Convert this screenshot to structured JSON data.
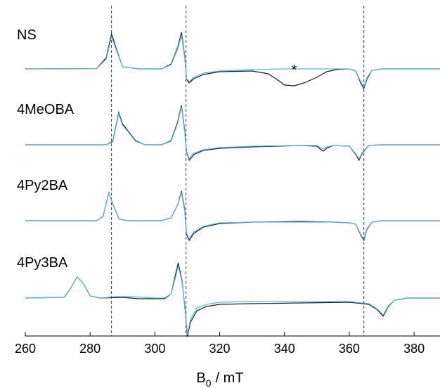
{
  "chart_data": {
    "type": "line",
    "title": "",
    "xlabel": "B",
    "xlabel_sub": "0",
    "xlabel_unit": "/ mT",
    "xlim": [
      260,
      388
    ],
    "xticks": [
      260,
      280,
      300,
      320,
      340,
      360,
      380
    ],
    "dashed_lines_x": [
      286.6,
      309.6,
      364.5
    ],
    "marker": {
      "symbol": "*",
      "x": 343,
      "spectrum": "NS"
    },
    "colors": {
      "experimental": "#1a1a1a",
      "simulated": "#5bb3d6"
    },
    "spectra": [
      {
        "name": "NS",
        "exp": [
          [
            260,
            0
          ],
          [
            282,
            0.5
          ],
          [
            285,
            16
          ],
          [
            286.6,
            50
          ],
          [
            288,
            30
          ],
          [
            290,
            3
          ],
          [
            295,
            0
          ],
          [
            302,
            0
          ],
          [
            305,
            7
          ],
          [
            307,
            30
          ],
          [
            308.2,
            52
          ],
          [
            309.2,
            18
          ],
          [
            309.8,
            -15
          ],
          [
            310.6,
            -20
          ],
          [
            312,
            -14
          ],
          [
            315,
            -8
          ],
          [
            320,
            -4
          ],
          [
            330,
            -3
          ],
          [
            335,
            -7
          ],
          [
            338,
            -16
          ],
          [
            340,
            -23
          ],
          [
            343,
            -24
          ],
          [
            346,
            -20
          ],
          [
            350,
            -12
          ],
          [
            353,
            -4
          ],
          [
            356,
            -1
          ],
          [
            360,
            0
          ],
          [
            362,
            -3
          ],
          [
            363.5,
            -20
          ],
          [
            364.5,
            -28
          ],
          [
            365.5,
            -14
          ],
          [
            367,
            -2
          ],
          [
            370,
            0
          ],
          [
            388,
            0
          ]
        ],
        "sim": [
          [
            260,
            0
          ],
          [
            282,
            0.5
          ],
          [
            285,
            14
          ],
          [
            286.6,
            46
          ],
          [
            288,
            28
          ],
          [
            290,
            3
          ],
          [
            295,
            0
          ],
          [
            302,
            0
          ],
          [
            305,
            6
          ],
          [
            307,
            28
          ],
          [
            308.2,
            48
          ],
          [
            309.2,
            16
          ],
          [
            309.8,
            -14
          ],
          [
            310.6,
            -18
          ],
          [
            312,
            -12
          ],
          [
            315,
            -6
          ],
          [
            320,
            -3
          ],
          [
            330,
            -1
          ],
          [
            340,
            0
          ],
          [
            350,
            0
          ],
          [
            356,
            0
          ],
          [
            360,
            0
          ],
          [
            362,
            -3
          ],
          [
            363.5,
            -18
          ],
          [
            364.5,
            -26
          ],
          [
            365.5,
            -12
          ],
          [
            367,
            -2
          ],
          [
            370,
            0
          ],
          [
            388,
            0
          ]
        ]
      },
      {
        "name": "4MeOBA",
        "exp": [
          [
            260,
            0
          ],
          [
            285,
            0
          ],
          [
            287,
            5
          ],
          [
            288.8,
            46
          ],
          [
            290,
            30
          ],
          [
            292,
            18
          ],
          [
            294,
            6
          ],
          [
            297,
            0
          ],
          [
            302,
            0
          ],
          [
            305,
            6
          ],
          [
            307,
            32
          ],
          [
            308.2,
            56
          ],
          [
            309.2,
            20
          ],
          [
            309.8,
            -10
          ],
          [
            310.6,
            -22
          ],
          [
            312,
            -14
          ],
          [
            315,
            -8
          ],
          [
            320,
            -5
          ],
          [
            330,
            -3
          ],
          [
            345,
            -1
          ],
          [
            350,
            -2
          ],
          [
            351,
            -6
          ],
          [
            352,
            -9
          ],
          [
            353,
            -5
          ],
          [
            355,
            -1
          ],
          [
            360,
            -2
          ],
          [
            362,
            -14
          ],
          [
            363,
            -22
          ],
          [
            364,
            -12
          ],
          [
            366,
            -1
          ],
          [
            370,
            0
          ],
          [
            388,
            0
          ]
        ],
        "sim": [
          [
            260,
            0
          ],
          [
            285,
            0
          ],
          [
            287,
            4
          ],
          [
            288.8,
            44
          ],
          [
            290,
            28
          ],
          [
            292,
            17
          ],
          [
            294,
            5
          ],
          [
            297,
            0
          ],
          [
            302,
            0
          ],
          [
            305,
            5
          ],
          [
            307,
            30
          ],
          [
            308.2,
            54
          ],
          [
            309.2,
            18
          ],
          [
            309.8,
            -9
          ],
          [
            310.6,
            -20
          ],
          [
            312,
            -12
          ],
          [
            315,
            -7
          ],
          [
            320,
            -4
          ],
          [
            330,
            -2
          ],
          [
            345,
            -1
          ],
          [
            350,
            -1
          ],
          [
            351,
            -4
          ],
          [
            352,
            -6
          ],
          [
            353,
            -3
          ],
          [
            355,
            -1
          ],
          [
            360,
            -2
          ],
          [
            362,
            -13
          ],
          [
            363,
            -20
          ],
          [
            364,
            -11
          ],
          [
            366,
            -1
          ],
          [
            370,
            0
          ],
          [
            388,
            0
          ]
        ]
      },
      {
        "name": "4Py2BA",
        "exp": [
          [
            260,
            0
          ],
          [
            282,
            0
          ],
          [
            284,
            6
          ],
          [
            285.8,
            40
          ],
          [
            287,
            24
          ],
          [
            289,
            2
          ],
          [
            292,
            0
          ],
          [
            302,
            0
          ],
          [
            305,
            4
          ],
          [
            307,
            22
          ],
          [
            308.2,
            42
          ],
          [
            309.2,
            16
          ],
          [
            309.8,
            -20
          ],
          [
            310.6,
            -28
          ],
          [
            312,
            -18
          ],
          [
            315,
            -9
          ],
          [
            320,
            -4
          ],
          [
            330,
            -2
          ],
          [
            345,
            -1
          ],
          [
            355,
            -2
          ],
          [
            360,
            -3
          ],
          [
            362,
            -5
          ],
          [
            363.5,
            -20
          ],
          [
            364.5,
            -28
          ],
          [
            365.5,
            -12
          ],
          [
            367,
            -2
          ],
          [
            370,
            0
          ],
          [
            388,
            0
          ]
        ],
        "sim": [
          [
            260,
            0
          ],
          [
            282,
            0
          ],
          [
            284,
            6
          ],
          [
            285.8,
            40
          ],
          [
            287,
            24
          ],
          [
            289,
            2
          ],
          [
            292,
            0
          ],
          [
            302,
            0
          ],
          [
            305,
            4
          ],
          [
            307,
            22
          ],
          [
            308.2,
            40
          ],
          [
            309.2,
            14
          ],
          [
            309.8,
            -18
          ],
          [
            310.6,
            -26
          ],
          [
            312,
            -16
          ],
          [
            315,
            -8
          ],
          [
            320,
            -3
          ],
          [
            330,
            -2
          ],
          [
            345,
            -2
          ],
          [
            355,
            -2
          ],
          [
            360,
            -3
          ],
          [
            362,
            -5
          ],
          [
            363.5,
            -19
          ],
          [
            364.5,
            -26
          ],
          [
            365.5,
            -11
          ],
          [
            367,
            -2
          ],
          [
            370,
            0
          ],
          [
            388,
            0
          ]
        ]
      },
      {
        "name": "4Py3BA",
        "exp": [
          [
            260,
            0
          ],
          [
            272,
            1
          ],
          [
            274,
            14
          ],
          [
            276,
            30
          ],
          [
            278,
            20
          ],
          [
            280,
            3
          ],
          [
            283,
            0
          ],
          [
            290,
            1
          ],
          [
            295,
            -1
          ],
          [
            300,
            -1
          ],
          [
            303,
            -1
          ],
          [
            305,
            6
          ],
          [
            306.5,
            36
          ],
          [
            307.2,
            50
          ],
          [
            308.4,
            24
          ],
          [
            309.4,
            -20
          ],
          [
            310,
            -55
          ],
          [
            311,
            -34
          ],
          [
            313,
            -18
          ],
          [
            316,
            -12
          ],
          [
            320,
            -9
          ],
          [
            330,
            -8
          ],
          [
            345,
            -7
          ],
          [
            360,
            -6
          ],
          [
            366,
            -9
          ],
          [
            368.5,
            -16
          ],
          [
            370.5,
            -26
          ],
          [
            372,
            -12
          ],
          [
            374,
            -3
          ],
          [
            378,
            0
          ],
          [
            388,
            0
          ]
        ],
        "sim": [
          [
            260,
            0
          ],
          [
            272,
            1
          ],
          [
            274,
            14
          ],
          [
            276,
            30
          ],
          [
            278,
            20
          ],
          [
            280,
            3
          ],
          [
            283,
            0
          ],
          [
            288,
            2
          ],
          [
            293,
            2
          ],
          [
            300,
            0
          ],
          [
            303,
            0
          ],
          [
            305,
            6
          ],
          [
            306.5,
            32
          ],
          [
            307.2,
            46
          ],
          [
            308.4,
            22
          ],
          [
            309.4,
            -18
          ],
          [
            310,
            -52
          ],
          [
            311,
            -30
          ],
          [
            313,
            -14
          ],
          [
            316,
            -9
          ],
          [
            320,
            -6
          ],
          [
            330,
            -5
          ],
          [
            345,
            -5
          ],
          [
            360,
            -5
          ],
          [
            366,
            -8
          ],
          [
            368.5,
            -15
          ],
          [
            370.5,
            -24
          ],
          [
            372,
            -11
          ],
          [
            374,
            -3
          ],
          [
            378,
            0
          ],
          [
            388,
            0
          ]
        ]
      }
    ]
  }
}
